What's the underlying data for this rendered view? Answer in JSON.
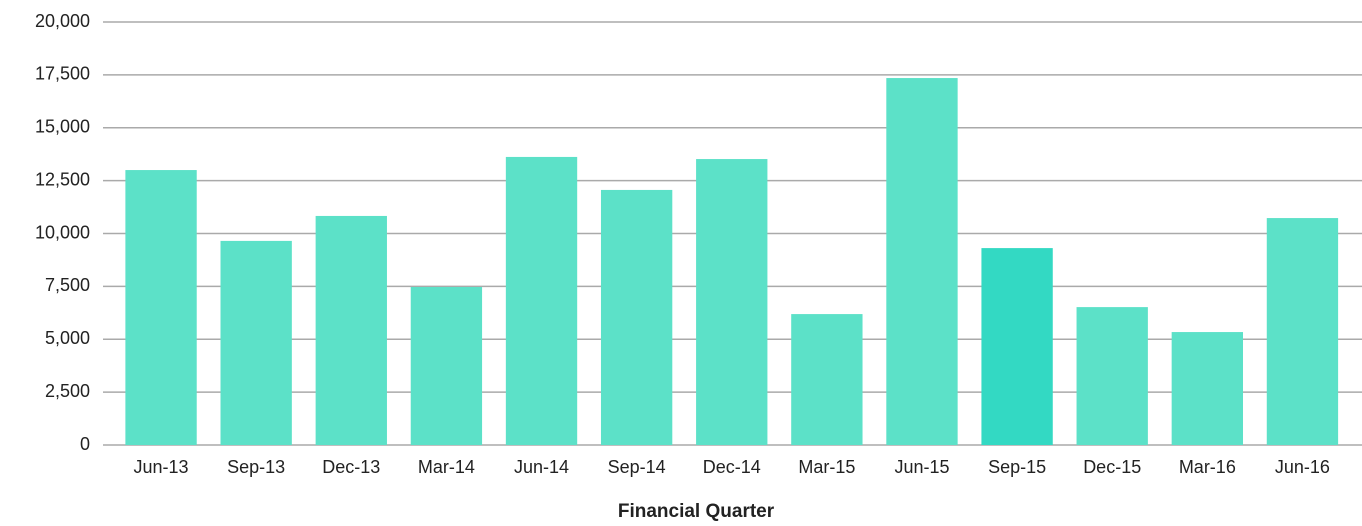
{
  "chart_data": {
    "type": "bar",
    "x_label": "Financial Quarter",
    "categories": [
      "Jun-13",
      "Sep-13",
      "Dec-13",
      "Mar-14",
      "Jun-14",
      "Sep-14",
      "Dec-14",
      "Mar-15",
      "Jun-15",
      "Sep-15",
      "Dec-15",
      "Mar-16",
      "Jun-16"
    ],
    "values": [
      13000,
      9650,
      10830,
      7470,
      13620,
      12060,
      13520,
      6190,
      17350,
      9310,
      6520,
      5340,
      10730
    ],
    "colors": [
      "#5ce1c8",
      "#5ce1c8",
      "#5ce1c8",
      "#5ce1c8",
      "#5ce1c8",
      "#5ce1c8",
      "#5ce1c8",
      "#5ce1c8",
      "#5ce1c8",
      "#33d9c3",
      "#5ce1c8",
      "#5ce1c8",
      "#5ce1c8"
    ],
    "ylim": [
      0,
      20000
    ],
    "yticks": [
      0,
      {
        "value": 2500,
        "label": "2,500"
      },
      {
        "value": 5000,
        "label": "5,000"
      },
      {
        "value": 7500,
        "label": "7,500"
      },
      {
        "value": 10000,
        "label": "10,000"
      },
      {
        "value": 12500,
        "label": "12,500"
      },
      {
        "value": 15000,
        "label": "15,000"
      },
      {
        "value": 17500,
        "label": "17,500"
      },
      {
        "value": 20000,
        "label": "20,000"
      }
    ],
    "grid": true
  }
}
